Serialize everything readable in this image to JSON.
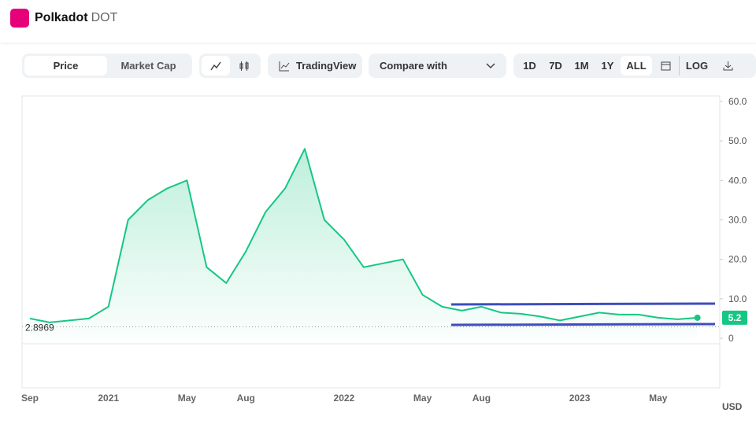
{
  "header": {
    "name": "Polkadot",
    "symbol": "DOT"
  },
  "toolbar": {
    "tabs": [
      "Price",
      "Market Cap"
    ],
    "tradingview": "TradingView",
    "compare": "Compare with",
    "ranges": [
      "1D",
      "7D",
      "1M",
      "1Y",
      "ALL"
    ],
    "log": "LOG"
  },
  "chart_data": {
    "type": "line",
    "categories": [
      "Sep",
      null,
      null,
      null,
      "2021",
      null,
      null,
      null,
      "May",
      null,
      null,
      "Aug",
      null,
      null,
      null,
      null,
      "2022",
      null,
      null,
      null,
      "May",
      null,
      null,
      "Aug",
      null,
      null,
      null,
      null,
      "2023",
      null,
      null,
      null,
      "May",
      null,
      null
    ],
    "series": [
      {
        "name": "Price",
        "color": "#16c784",
        "values": [
          5,
          4,
          4.5,
          5,
          8,
          30,
          35,
          38,
          40,
          18,
          14,
          22,
          32,
          38,
          48,
          30,
          25,
          18,
          19,
          20,
          11,
          8,
          7,
          8,
          6.5,
          6.2,
          5.5,
          4.5,
          5.5,
          6.5,
          6,
          6,
          5.2,
          4.8,
          5.2
        ]
      }
    ],
    "ylim": [
      0,
      60
    ],
    "yticks": [
      0,
      {
        "value": 10,
        "label": "10.0"
      },
      {
        "value": 20,
        "label": "20.0"
      },
      {
        "value": 30,
        "label": "30.0"
      },
      {
        "value": 40,
        "label": "40.0"
      },
      {
        "value": 50,
        "label": "50.0"
      },
      {
        "value": 60,
        "label": "60.0"
      }
    ],
    "y_axis_label": "USD",
    "min_price": 2.8969,
    "current_price": 5.2
  }
}
